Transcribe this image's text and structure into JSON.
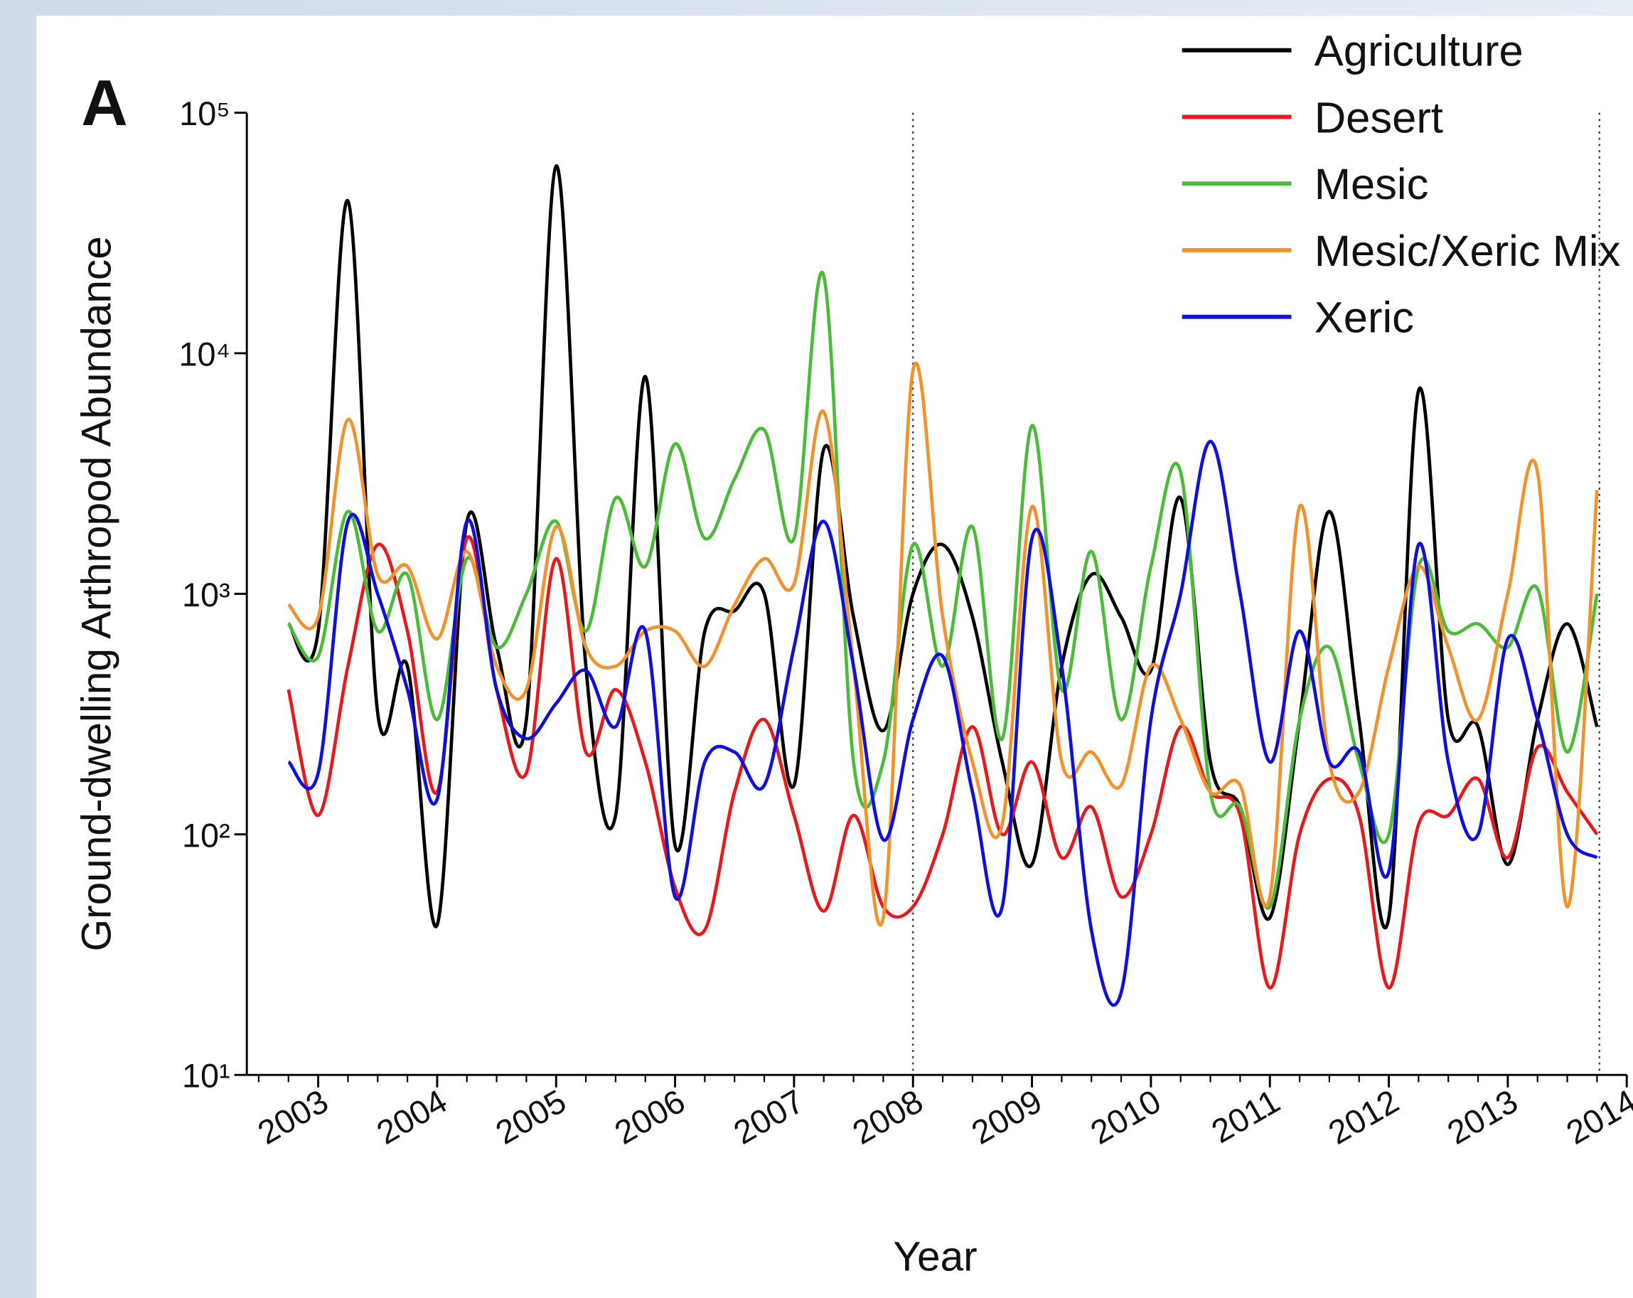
{
  "chart_data": {
    "type": "line",
    "panel_label": "A",
    "xlabel": "Year",
    "ylabel": "Ground-dwelling Arthropod Abundance",
    "log_y": true,
    "grid": false,
    "legend": "top-right",
    "xlim": [
      2002.4,
      2014
    ],
    "xticks": [
      2003,
      2004,
      2005,
      2006,
      2007,
      2008,
      2009,
      2010,
      2011,
      2012,
      2013,
      2014
    ],
    "ylim": [
      10,
      100000
    ],
    "yticks": [
      {
        "value": 10,
        "label": "10¹"
      },
      {
        "value": 100,
        "label": "10²"
      },
      {
        "value": 1000,
        "label": "10³"
      },
      {
        "value": 10000,
        "label": "10⁴"
      },
      {
        "value": 100000,
        "label": "10⁵"
      }
    ],
    "vlines": [
      2008,
      2013.77
    ],
    "x": [
      2002.75,
      2003,
      2003.25,
      2003.5,
      2003.75,
      2004,
      2004.25,
      2004.5,
      2004.75,
      2005,
      2005.25,
      2005.5,
      2005.75,
      2006,
      2006.25,
      2006.5,
      2006.75,
      2007,
      2007.25,
      2007.5,
      2007.75,
      2008,
      2008.25,
      2008.5,
      2008.75,
      2009,
      2009.25,
      2009.5,
      2009.75,
      2010,
      2010.25,
      2010.5,
      2010.75,
      2011,
      2011.25,
      2011.5,
      2011.75,
      2012,
      2012.25,
      2012.5,
      2012.75,
      2013,
      2013.25,
      2013.5,
      2013.75
    ],
    "series": [
      {
        "name": "Agriculture",
        "color": "#000000",
        "values": [
          750,
          700,
          43000,
          320,
          500,
          42,
          2000,
          600,
          300,
          60000,
          500,
          120,
          8000,
          90,
          700,
          850,
          1000,
          160,
          4000,
          800,
          270,
          1000,
          1600,
          800,
          200,
          75,
          500,
          1200,
          800,
          480,
          2500,
          200,
          130,
          45,
          300,
          2200,
          300,
          45,
          7000,
          300,
          280,
          75,
          300,
          750,
          280
        ]
      },
      {
        "name": "Desert",
        "color": "#e41a1c",
        "values": [
          400,
          120,
          500,
          1600,
          700,
          150,
          1700,
          400,
          180,
          1400,
          220,
          400,
          200,
          60,
          40,
          150,
          300,
          120,
          48,
          120,
          50,
          50,
          100,
          280,
          100,
          200,
          80,
          130,
          55,
          100,
          280,
          150,
          120,
          23,
          100,
          170,
          120,
          23,
          110,
          120,
          170,
          80,
          230,
          150,
          100
        ]
      },
      {
        "name": "Mesic",
        "color": "#4dbb3a",
        "values": [
          750,
          550,
          2200,
          700,
          1200,
          300,
          1400,
          600,
          1000,
          2000,
          700,
          2500,
          1300,
          4200,
          1700,
          3000,
          4800,
          1700,
          21000,
          200,
          200,
          1600,
          500,
          1900,
          250,
          5000,
          400,
          1500,
          300,
          1300,
          3200,
          150,
          130,
          50,
          300,
          600,
          200,
          100,
          1300,
          700,
          750,
          600,
          1050,
          220,
          1000
        ]
      },
      {
        "name": "Mesic/Xeric Mix",
        "color": "#f0922e",
        "values": [
          900,
          800,
          5300,
          1200,
          1300,
          650,
          1500,
          500,
          400,
          1900,
          600,
          500,
          700,
          700,
          500,
          900,
          1400,
          1100,
          5700,
          500,
          45,
          8500,
          800,
          200,
          110,
          2300,
          200,
          220,
          160,
          500,
          300,
          150,
          160,
          55,
          2300,
          200,
          150,
          500,
          1300,
          600,
          300,
          1000,
          3200,
          50,
          2700
        ]
      },
      {
        "name": "Xeric",
        "color": "#1010d8",
        "values": [
          200,
          180,
          2000,
          1000,
          400,
          140,
          2000,
          400,
          250,
          350,
          480,
          280,
          700,
          55,
          200,
          220,
          160,
          600,
          2000,
          500,
          95,
          300,
          550,
          150,
          50,
          1700,
          500,
          40,
          22,
          300,
          1000,
          4300,
          1000,
          200,
          700,
          200,
          220,
          70,
          1600,
          200,
          100,
          650,
          300,
          100,
          80
        ]
      }
    ]
  }
}
